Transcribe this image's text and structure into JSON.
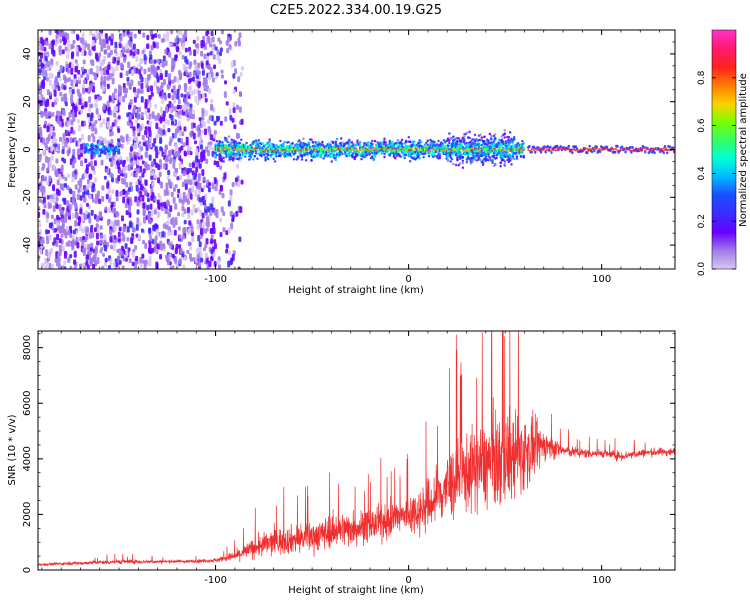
{
  "title": "C2E5.2022.334.00.19.G25",
  "chart_data": [
    {
      "type": "heatmap",
      "xlabel": "Height of straight line (km)",
      "ylabel": "Frequency (Hz)",
      "xlim": [
        -192,
        138
      ],
      "ylim": [
        -50,
        50
      ],
      "x_ticks": [
        -100,
        0,
        100
      ],
      "y_ticks": [
        -40,
        -20,
        0,
        20,
        40
      ],
      "grid": false,
      "colorbar": {
        "label": "Normalized spectral amplitude",
        "range": [
          0,
          1
        ],
        "ticks": [
          0.0,
          0.2,
          0.4,
          0.6,
          0.8
        ],
        "tick_labels": [
          "0.0",
          "0.2",
          "0.4",
          "0.6",
          "0.8"
        ],
        "colors": [
          "#d8c7f2",
          "#a27be9",
          "#6a00ff",
          "#3a2cff",
          "#1b4dff",
          "#00b6ff",
          "#00ffd5",
          "#33ff66",
          "#7aff00",
          "#ffd000",
          "#ff7a00",
          "#ff2020",
          "#ff1a6e",
          "#ff33cc"
        ]
      },
      "regions": [
        {
          "x_range": [
            -192,
            -92
          ],
          "description_value": "broadband noise, amplitude 0.05-0.2, all frequencies"
        },
        {
          "x_range": [
            -168,
            -150
          ],
          "freq_center": 0,
          "freq_halfwidth": 4,
          "amplitude": 0.3
        },
        {
          "x_range": [
            -100,
            60
          ],
          "freq_center": 0,
          "freq_halfwidth": 8,
          "amplitude_core": 0.5
        },
        {
          "x_range": [
            62,
            138
          ],
          "freq_center": 0,
          "freq_halfwidth": 2,
          "amplitude_core": 0.85
        }
      ]
    },
    {
      "type": "line",
      "xlabel": "Height of straight line (km)",
      "ylabel": "SNR (10 * v/v)",
      "xlim": [
        -192,
        138
      ],
      "ylim": [
        0,
        8600
      ],
      "x_ticks": [
        -100,
        0,
        100
      ],
      "y_ticks": [
        0,
        2000,
        4000,
        6000,
        8000
      ],
      "grid": false,
      "series": [
        {
          "color": "#f03030",
          "x": [
            -190,
            -170,
            -150,
            -130,
            -110,
            -100,
            -90,
            -80,
            -70,
            -60,
            -50,
            -40,
            -30,
            -20,
            -10,
            0,
            10,
            20,
            30,
            40,
            50,
            60,
            70,
            80,
            90,
            100,
            110,
            120,
            130,
            138
          ],
          "y": [
            200,
            250,
            300,
            300,
            320,
            350,
            500,
            800,
            1000,
            1100,
            1200,
            1400,
            1500,
            1600,
            1800,
            2000,
            2300,
            3000,
            3500,
            3800,
            4000,
            4200,
            4500,
            4300,
            4200,
            4200,
            4100,
            4200,
            4250,
            4250
          ],
          "spread": [
            60,
            80,
            120,
            80,
            80,
            100,
            250,
            500,
            700,
            700,
            800,
            800,
            900,
            800,
            900,
            1000,
            1300,
            1800,
            2000,
            2200,
            2500,
            2000,
            800,
            300,
            250,
            200,
            250,
            200,
            200,
            200
          ]
        }
      ]
    }
  ]
}
